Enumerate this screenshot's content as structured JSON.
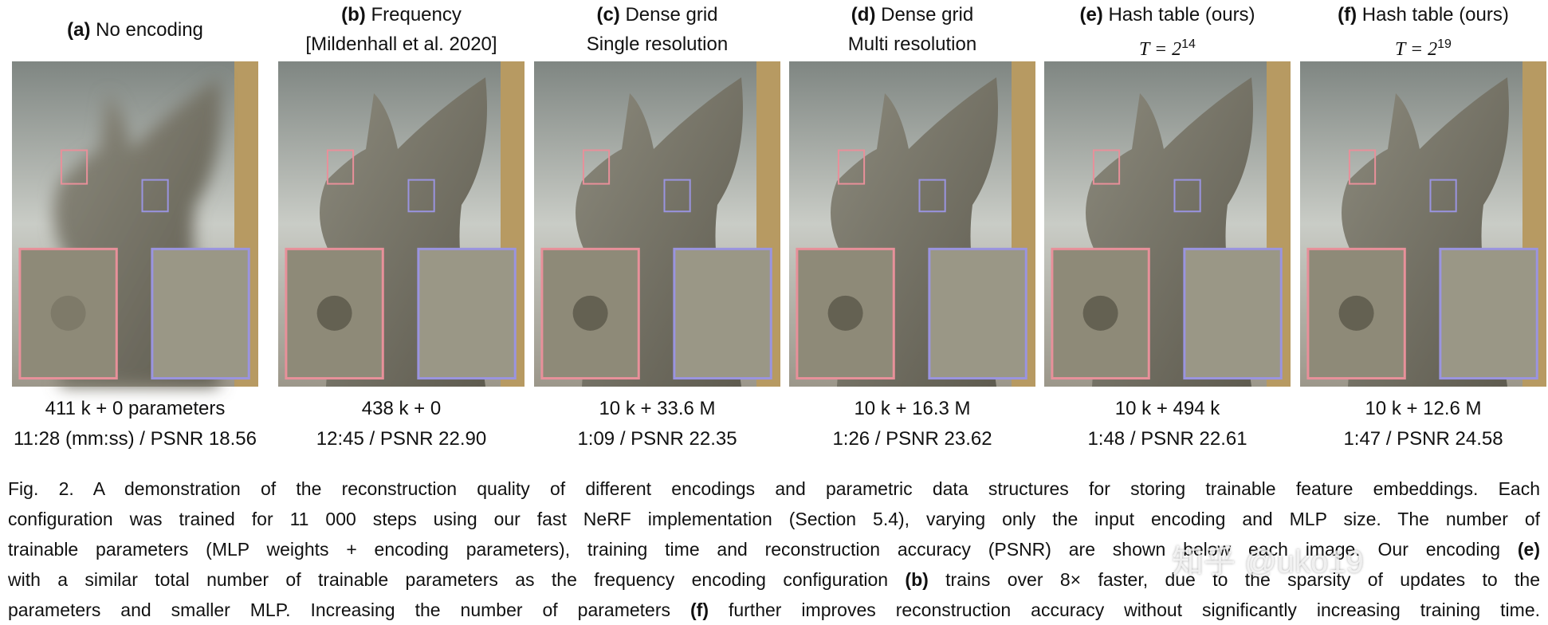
{
  "panels": [
    {
      "label": "(a)",
      "title": [
        "No encoding"
      ],
      "stats": [
        "411 k + 0 parameters",
        "11:28 (mm:ss) / PSNR 18.56"
      ]
    },
    {
      "label": "(b)",
      "title": [
        "Frequency",
        "[Mildenhall et al. 2020]"
      ],
      "stats": [
        "438 k + 0",
        "12:45 / PSNR 22.90"
      ]
    },
    {
      "label": "(c)",
      "title": [
        "Dense grid",
        "Single resolution"
      ],
      "stats": [
        "10 k + 33.6 M",
        "1:09 / PSNR 22.35"
      ]
    },
    {
      "label": "(d)",
      "title": [
        "Dense grid",
        "Multi resolution"
      ],
      "stats": [
        "10 k + 16.3 M",
        "1:26 / PSNR 23.62"
      ]
    },
    {
      "label": "(e)",
      "title": [
        "Hash table (ours)"
      ],
      "math": {
        "base": "T = 2",
        "exp": "14"
      },
      "stats": [
        "10 k + 494 k",
        "1:48 / PSNR 22.61"
      ]
    },
    {
      "label": "(f)",
      "title": [
        "Hash table (ours)"
      ],
      "math": {
        "base": "T = 2",
        "exp": "19"
      },
      "stats": [
        "10 k + 12.6 M",
        "1:47 / PSNR 24.58"
      ]
    }
  ],
  "caption": {
    "lines": [
      [
        "Fig. 2.  A demonstration of the reconstruction quality of different encodings and parametric data structures for storing trainable feature embeddings. Each"
      ],
      [
        "configuration was trained for 11 000 steps using our fast NeRF implementation (Section 5.4), varying only the input encoding and MLP size. The number of"
      ],
      [
        "trainable parameters (MLP weights + encoding parameters), training time and reconstruction accuracy (PSNR) are shown below each image. Our encoding ",
        {
          "bold": "(e)"
        }
      ],
      [
        "with a similar total number of trainable parameters as the frequency encoding configuration ",
        {
          "bold": "(b)"
        },
        " trains over 8× faster, due to the sparsity of updates to the"
      ],
      [
        "parameters and smaller MLP. Increasing the number of parameters ",
        {
          "bold": "(f)"
        },
        " further improves reconstruction accuracy without significantly increasing training time."
      ]
    ]
  },
  "watermark": "知乎 @uko19"
}
